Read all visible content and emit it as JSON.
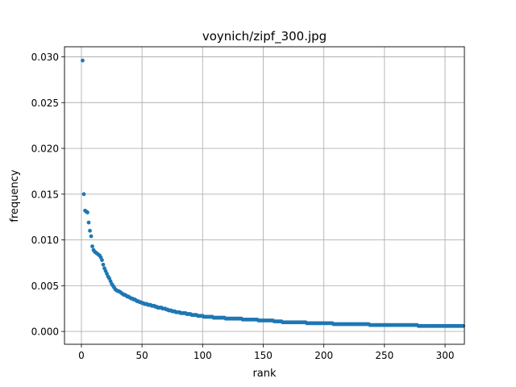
{
  "chart_data": {
    "type": "scatter",
    "title": "voynich/zipf_300.jpg",
    "xlabel": "rank",
    "ylabel": "frequency",
    "xlim": [
      -13.95,
      315.95
    ],
    "ylim": [
      -0.0014,
      0.0311
    ],
    "xticks": [
      0,
      50,
      100,
      150,
      200,
      250,
      300
    ],
    "xtick_labels": [
      "0",
      "50",
      "100",
      "150",
      "200",
      "250",
      "300"
    ],
    "yticks": [
      0.0,
      0.005,
      0.01,
      0.015,
      0.02,
      0.025,
      0.03
    ],
    "ytick_labels": [
      "0.000",
      "0.005",
      "0.010",
      "0.015",
      "0.020",
      "0.025",
      "0.030"
    ],
    "grid": true,
    "marker_color": "#1f77b4",
    "series": [
      {
        "x_start": 1,
        "x_step": 1,
        "values": [
          0.0296,
          0.015,
          0.0132,
          0.0131,
          0.013,
          0.0119,
          0.011,
          0.0104,
          0.0093,
          0.0089,
          0.0087,
          0.0086,
          0.0085,
          0.0084,
          0.0083,
          0.0081,
          0.0078,
          0.0073,
          0.0069,
          0.0066,
          0.0063,
          0.006,
          0.0058,
          0.0055,
          0.0052,
          0.005,
          0.0048,
          0.0046,
          0.0045,
          0.0044,
          0.0044,
          0.0043,
          0.0042,
          0.0041,
          0.004,
          0.004,
          0.0039,
          0.0038,
          0.0038,
          0.0037,
          0.0036,
          0.0036,
          0.0035,
          0.0035,
          0.0034,
          0.0033,
          0.0033,
          0.0032,
          0.0032,
          0.0031,
          0.0031,
          0.003,
          0.003,
          0.003,
          0.0029,
          0.0029,
          0.0029,
          0.0028,
          0.0028,
          0.0028,
          0.0027,
          0.0027,
          0.0026,
          0.0026,
          0.0026,
          0.0026,
          0.0025,
          0.0025,
          0.0025,
          0.0024,
          0.0024,
          0.0023,
          0.0023,
          0.0023,
          0.0022,
          0.0022,
          0.0022,
          0.0021,
          0.0021,
          0.0021,
          0.0021,
          0.002,
          0.002,
          0.002,
          0.002,
          0.002,
          0.0019,
          0.0019,
          0.0019,
          0.0019,
          0.0018,
          0.0018,
          0.0018,
          0.0018,
          0.0018,
          0.0017,
          0.0017,
          0.0017,
          0.0017,
          0.0017,
          0.0016,
          0.0016,
          0.0016,
          0.0016,
          0.0016,
          0.0016,
          0.0016,
          0.0016,
          0.0015,
          0.0015,
          0.0015,
          0.0015,
          0.0015,
          0.0015,
          0.0015,
          0.0015,
          0.0015,
          0.0015,
          0.0014,
          0.0014,
          0.0014,
          0.0014,
          0.0014,
          0.0014,
          0.0014,
          0.0014,
          0.0014,
          0.0014,
          0.0014,
          0.0014,
          0.0014,
          0.0014,
          0.0013,
          0.0013,
          0.0013,
          0.0013,
          0.0013,
          0.0013,
          0.0013,
          0.0013,
          0.0013,
          0.0013,
          0.0013,
          0.0013,
          0.0013,
          0.0012,
          0.0012,
          0.0012,
          0.0012,
          0.0012,
          0.0012,
          0.0012,
          0.0012,
          0.0012,
          0.0012,
          0.0012,
          0.0012,
          0.0012,
          0.0011,
          0.0011,
          0.0011,
          0.0011,
          0.0011,
          0.0011,
          0.0011,
          0.001,
          0.001,
          0.001,
          0.001,
          0.001,
          0.001,
          0.001,
          0.001,
          0.001,
          0.001,
          0.001,
          0.001,
          0.001,
          0.001,
          0.001,
          0.001,
          0.001,
          0.001,
          0.001,
          0.001,
          0.0009,
          0.0009,
          0.0009,
          0.0009,
          0.0009,
          0.0009,
          0.0009,
          0.0009,
          0.0009,
          0.0009,
          0.0009,
          0.0009,
          0.0009,
          0.0009,
          0.0009,
          0.0009,
          0.0009,
          0.0009,
          0.0009,
          0.0009,
          0.0009,
          0.0009,
          0.0008,
          0.0008,
          0.0008,
          0.0008,
          0.0008,
          0.0008,
          0.0008,
          0.0008,
          0.0008,
          0.0008,
          0.0008,
          0.0008,
          0.0008,
          0.0008,
          0.0008,
          0.0008,
          0.0008,
          0.0008,
          0.0008,
          0.0008,
          0.0008,
          0.0008,
          0.0008,
          0.0008,
          0.0008,
          0.0008,
          0.0008,
          0.0008,
          0.0008,
          0.0008,
          0.0007,
          0.0007,
          0.0007,
          0.0007,
          0.0007,
          0.0007,
          0.0007,
          0.0007,
          0.0007,
          0.0007,
          0.0007,
          0.0007,
          0.0007,
          0.0007,
          0.0007,
          0.0007,
          0.0007,
          0.0007,
          0.0007,
          0.0007,
          0.0007,
          0.0007,
          0.0007,
          0.0007,
          0.0007,
          0.0007,
          0.0007,
          0.0007,
          0.0007,
          0.0007,
          0.0007,
          0.0007,
          0.0007,
          0.0007,
          0.0007,
          0.0007,
          0.0007,
          0.0007,
          0.0007,
          0.0007,
          0.0006,
          0.0006,
          0.0006,
          0.0006,
          0.0006,
          0.0006,
          0.0006,
          0.0006,
          0.0006,
          0.0006,
          0.0006,
          0.0006,
          0.0006,
          0.0006,
          0.0006,
          0.0006,
          0.0006,
          0.0006,
          0.0006,
          0.0006,
          0.0006,
          0.0006,
          0.0006,
          0.0006,
          0.0006,
          0.0006,
          0.0006,
          0.0006,
          0.0006,
          0.0006,
          0.0006,
          0.0006,
          0.0006,
          0.0006,
          0.0006,
          0.0006,
          0.0006,
          0.0006
        ]
      }
    ]
  }
}
